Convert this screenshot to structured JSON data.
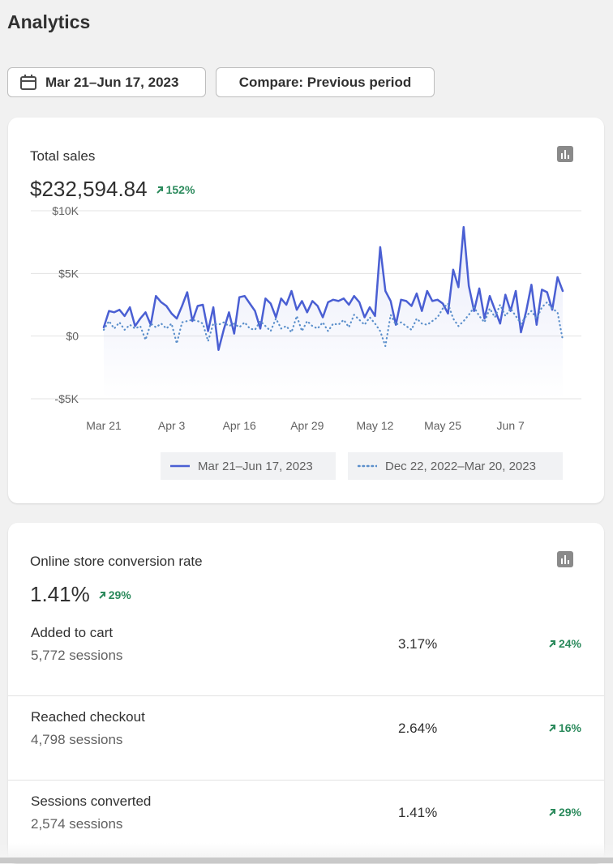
{
  "header": {
    "title": "Analytics",
    "date_range": "Mar 21–Jun 17, 2023",
    "compare": "Compare: Previous period"
  },
  "sales_card": {
    "title": "Total sales",
    "total": "$232,594.84",
    "change": "152%"
  },
  "chart_data": {
    "type": "line",
    "categories": [
      "Mar 21",
      null,
      null,
      null,
      null,
      null,
      null,
      null,
      null,
      null,
      null,
      null,
      null,
      "Apr 3",
      null,
      null,
      null,
      null,
      null,
      null,
      null,
      null,
      null,
      null,
      null,
      null,
      "Apr 16",
      null,
      null,
      null,
      null,
      null,
      null,
      null,
      null,
      null,
      null,
      null,
      null,
      "Apr 29",
      null,
      null,
      null,
      null,
      null,
      null,
      null,
      null,
      null,
      null,
      null,
      null,
      "May 12",
      null,
      null,
      null,
      null,
      null,
      null,
      null,
      null,
      null,
      null,
      null,
      null,
      "May 25",
      null,
      null,
      null,
      null,
      null,
      null,
      null,
      null,
      null,
      null,
      null,
      null,
      "Jun 7",
      null,
      null,
      null,
      null,
      null,
      null,
      null,
      null,
      null,
      null
    ],
    "series": [
      {
        "name": "Mar 21–Jun 17, 2023",
        "color": "#4a5fd3",
        "style": "solid",
        "values": [
          700,
          2000,
          1900,
          2100,
          1600,
          2300,
          800,
          1400,
          1900,
          900,
          3200,
          2700,
          2400,
          1800,
          1400,
          2400,
          3500,
          1200,
          2400,
          2500,
          400,
          2300,
          -1100,
          500,
          1900,
          200,
          3100,
          3200,
          2600,
          2000,
          600,
          3000,
          2600,
          1500,
          3000,
          2500,
          3600,
          2100,
          2800,
          1900,
          2800,
          2400,
          1500,
          2700,
          2900,
          2800,
          3000,
          2500,
          3200,
          2700,
          1500,
          2300,
          1600,
          7100,
          3600,
          2800,
          900,
          2900,
          2800,
          2400,
          3400,
          2000,
          3600,
          2800,
          2900,
          2600,
          1800,
          5300,
          3900,
          8700,
          4000,
          2000,
          3800,
          1400,
          3200,
          2100,
          1000,
          3300,
          2000,
          3600,
          300,
          2000,
          4100,
          900,
          3700,
          3500,
          2100,
          4700,
          3600
        ]
      },
      {
        "name": "Dec 22, 2022–Mar 20, 2023",
        "color": "#5b8fcb",
        "style": "dotted",
        "values": [
          500,
          1200,
          600,
          1100,
          500,
          900,
          600,
          800,
          -300,
          1000,
          700,
          1000,
          600,
          1000,
          -600,
          1100,
          1200,
          1300,
          1200,
          1000,
          -400,
          1000,
          900,
          1100,
          800,
          1000,
          700,
          1100,
          600,
          500,
          1200,
          800,
          400,
          1400,
          600,
          800,
          300,
          1600,
          400,
          1200,
          800,
          600,
          1100,
          400,
          1000,
          900,
          1300,
          700,
          1700,
          1300,
          900,
          1500,
          1000,
          400,
          -800,
          1700,
          900,
          1100,
          800,
          500,
          1400,
          1000,
          900,
          1200,
          1500,
          2200,
          2600,
          1400,
          800,
          1200,
          1700,
          2300,
          1600,
          1100,
          2200,
          1500,
          2500,
          1600,
          2200,
          1600,
          1000,
          1600,
          2000,
          1400,
          2300,
          2700,
          2200,
          1900,
          -300
        ]
      }
    ],
    "ylim": [
      -5000,
      10000
    ],
    "yticks": [
      {
        "value": -5000,
        "label": "-$5K"
      },
      {
        "value": 0,
        "label": "$0"
      },
      {
        "value": 5000,
        "label": "$5K"
      },
      {
        "value": 10000,
        "label": "$10K"
      }
    ],
    "grid": true,
    "legend": "bottom"
  },
  "conversion_card": {
    "title": "Online store conversion rate",
    "rate": "1.41%",
    "change": "29%",
    "rows": [
      {
        "label": "Added to cart",
        "sessions": "5,772 sessions",
        "rate": "3.17%",
        "change": "24%"
      },
      {
        "label": "Reached checkout",
        "sessions": "4,798 sessions",
        "rate": "2.64%",
        "change": "16%"
      },
      {
        "label": "Sessions converted",
        "sessions": "2,574 sessions",
        "rate": "1.41%",
        "change": "29%"
      }
    ]
  }
}
